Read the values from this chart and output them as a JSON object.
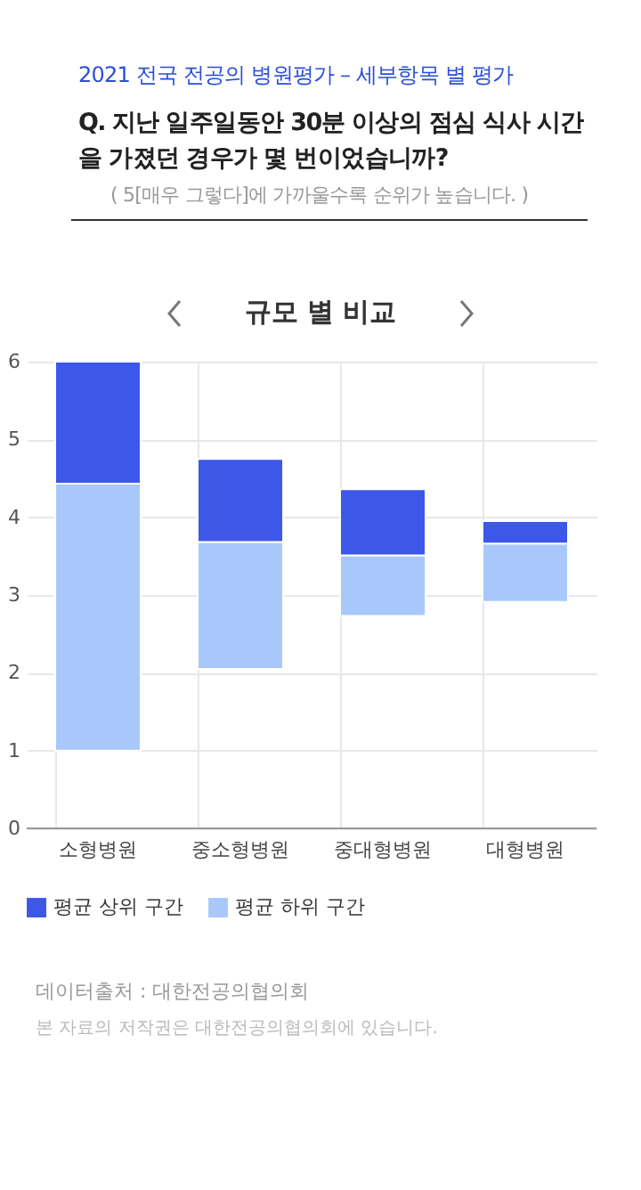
{
  "chart_data": {
    "type": "bar",
    "title": "Q. 지난 일주일동안 30분 이상의 점심 식사 시간\n을 가졌던 경우가 몇 번이었습니까?",
    "subtitle": "( 5[매우 그렇다]에 가까울수록 순위가 높습니다. )",
    "annotations": [
      "2021 전국 전공의 병원평가 – 세부항목 별 평가",
      "규모 별 비교",
      "데이터출처 : 대한전공의협의회",
      "본 자료의 저작권은 대한전공의협의회에 있습니다."
    ],
    "categories": [
      "소형병원",
      "중소형병원",
      "중대형병원",
      "대형병원"
    ],
    "series": [
      {
        "name": "평균 하위 구간",
        "color": "#a8c8fb",
        "values": [
          3.43,
          1.63,
          0.78,
          0.75
        ],
        "base": [
          1,
          2.05,
          2.73,
          2.91
        ]
      },
      {
        "name": "평균 상위 구간",
        "color": "#3d57e8",
        "values": [
          1.57,
          1.07,
          0.85,
          0.29
        ],
        "base": [
          4.43,
          3.68,
          3.51,
          3.66
        ]
      }
    ],
    "ylim": [
      0,
      6
    ],
    "yticks": [
      0,
      1,
      2,
      3,
      4,
      5,
      6
    ],
    "grid": true,
    "legend": "bottom"
  }
}
